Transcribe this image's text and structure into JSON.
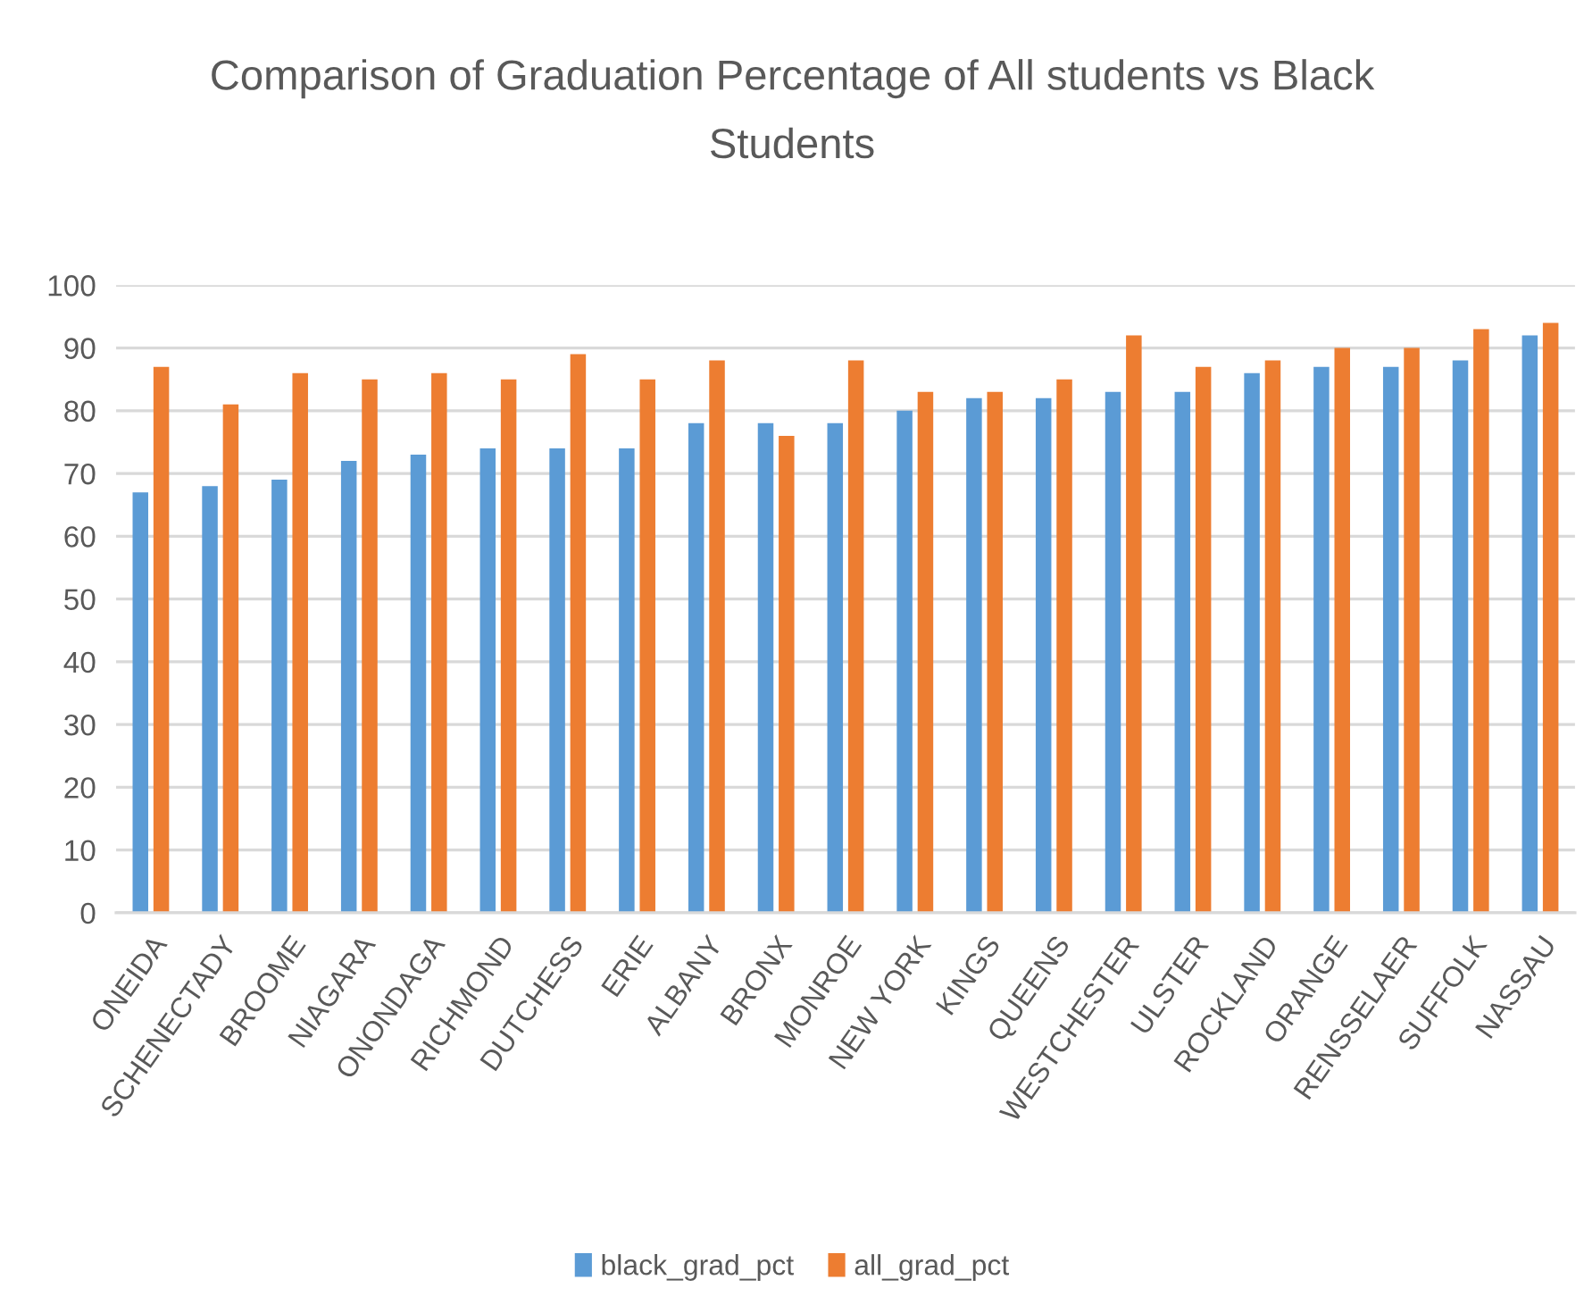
{
  "chart_data": {
    "type": "bar",
    "title": "Comparison of Graduation Percentage of All students vs Black Students",
    "categories": [
      "ONEIDA",
      "SCHENECTADY",
      "BROOME",
      "NIAGARA",
      "ONONDAGA",
      "RICHMOND",
      "DUTCHESS",
      "ERIE",
      "ALBANY",
      "BRONX",
      "MONROE",
      "NEW YORK",
      "KINGS",
      "QUEENS",
      "WESTCHESTER",
      "ULSTER",
      "ROCKLAND",
      "ORANGE",
      "RENSSELAER",
      "SUFFOLK",
      "NASSAU"
    ],
    "series": [
      {
        "name": "black_grad_pct",
        "color": "#5b9bd5",
        "values": [
          67,
          68,
          69,
          72,
          73,
          74,
          74,
          74,
          78,
          78,
          78,
          80,
          82,
          82,
          83,
          83,
          86,
          87,
          87,
          88,
          92
        ]
      },
      {
        "name": "all_grad_pct",
        "color": "#ed7d31",
        "values": [
          87,
          81,
          86,
          85,
          86,
          85,
          89,
          85,
          88,
          76,
          88,
          83,
          83,
          85,
          92,
          87,
          88,
          90,
          90,
          93,
          94
        ]
      }
    ],
    "ylim": [
      0,
      100
    ],
    "yticks": [
      0,
      10,
      20,
      30,
      40,
      50,
      60,
      70,
      80,
      90,
      100
    ],
    "grid": "y",
    "legend": "bottom"
  }
}
